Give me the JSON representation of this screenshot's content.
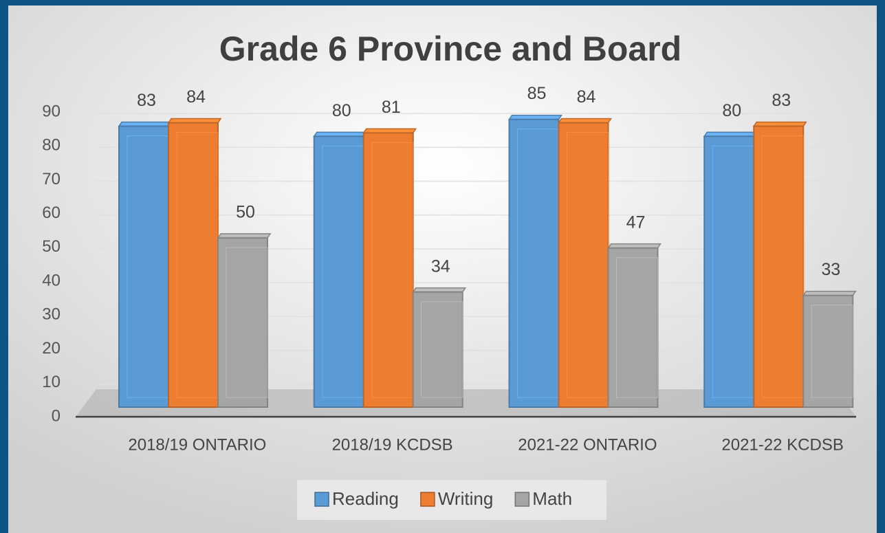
{
  "chart_data": {
    "type": "bar",
    "title": "Grade 6 Province and Board",
    "categories": [
      "2018/19 ONTARIO",
      "2018/19 KCDSB",
      "2021-22 ONTARIO",
      "2021-22 KCDSB"
    ],
    "series": [
      {
        "name": "Reading",
        "color": "#5b9bd5",
        "values": [
          83,
          80,
          85,
          80
        ]
      },
      {
        "name": "Writing",
        "color": "#ed7d31",
        "values": [
          84,
          81,
          84,
          83
        ]
      },
      {
        "name": "Math",
        "color": "#a5a5a5",
        "values": [
          50,
          34,
          47,
          33
        ]
      }
    ],
    "ylim": [
      0,
      90
    ],
    "yticks": [
      0,
      10,
      20,
      30,
      40,
      50,
      60,
      70,
      80,
      90
    ],
    "grid": true,
    "legend": "bottom"
  }
}
